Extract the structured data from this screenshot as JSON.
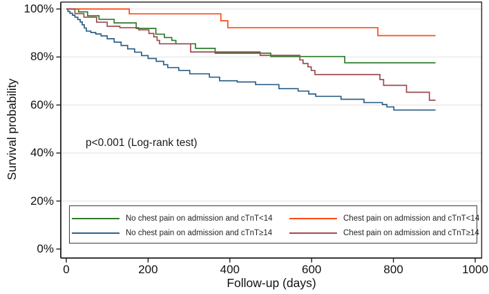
{
  "figure": {
    "y_axis": {
      "title": "Survival probability",
      "ticks": [
        {
          "label": "100%",
          "value": 100
        },
        {
          "label": "80%",
          "value": 80
        },
        {
          "label": "60%",
          "value": 60
        },
        {
          "label": "40%",
          "value": 40
        },
        {
          "label": "20%",
          "value": 20
        },
        {
          "label": "0%",
          "value": 0
        }
      ]
    },
    "x_axis": {
      "title": "Follow-up (days)",
      "ticks": [
        {
          "label": "0",
          "value": 0
        },
        {
          "label": "200",
          "value": 200
        },
        {
          "label": "400",
          "value": 400
        },
        {
          "label": "600",
          "value": 600
        },
        {
          "label": "800",
          "value": 800
        },
        {
          "label": "1000",
          "value": 1000
        }
      ]
    },
    "annotation": "p<0.001 (Log-rank test)"
  },
  "chart_data": {
    "type": "line",
    "subtype": "kaplan-meier-step",
    "title": "",
    "xlabel": "Follow-up (days)",
    "ylabel": "Survival probability",
    "xlim": [
      0,
      1000
    ],
    "ylim": [
      0,
      100
    ],
    "grid": "horizontal",
    "legend_position": "bottom-inside-framed",
    "annotation": "p<0.001 (Log-rank test)",
    "gridline_color": "#e8e8e8",
    "series": [
      {
        "name": "No chest pain on admission and cTnT<14",
        "color": "#2b7a2b",
        "points": [
          [
            0,
            100
          ],
          [
            30,
            98.8
          ],
          [
            52,
            97.2
          ],
          [
            80,
            95.7
          ],
          [
            117,
            94.2
          ],
          [
            171,
            91.9
          ],
          [
            219,
            89.5
          ],
          [
            240,
            88.1
          ],
          [
            258,
            86.9
          ],
          [
            268,
            85.5
          ],
          [
            316,
            83.6
          ],
          [
            364,
            81.6
          ],
          [
            500,
            80.2
          ],
          [
            681,
            77.6
          ],
          [
            903,
            77.6
          ]
        ]
      },
      {
        "name": "No chest pain on admission and cTnT≥14",
        "color": "#2d5f86",
        "points": [
          [
            0,
            100
          ],
          [
            4,
            99
          ],
          [
            9,
            98.2
          ],
          [
            15,
            97.4
          ],
          [
            21,
            96.6
          ],
          [
            28,
            95.6
          ],
          [
            34,
            94.6
          ],
          [
            39,
            93.4
          ],
          [
            44,
            92.1
          ],
          [
            49,
            90.8
          ],
          [
            60,
            90.2
          ],
          [
            72,
            89.6
          ],
          [
            85,
            88.8
          ],
          [
            100,
            87.6
          ],
          [
            117,
            86.2
          ],
          [
            134,
            84.8
          ],
          [
            150,
            83.4
          ],
          [
            167,
            82
          ],
          [
            184,
            80.6
          ],
          [
            200,
            79.4
          ],
          [
            220,
            78.2
          ],
          [
            238,
            76.8
          ],
          [
            248,
            75.6
          ],
          [
            275,
            74.4
          ],
          [
            302,
            73
          ],
          [
            350,
            71.6
          ],
          [
            375,
            70.1
          ],
          [
            418,
            69.6
          ],
          [
            463,
            68.5
          ],
          [
            520,
            66.8
          ],
          [
            567,
            65.8
          ],
          [
            593,
            64.6
          ],
          [
            610,
            63.6
          ],
          [
            672,
            62.4
          ],
          [
            728,
            61
          ],
          [
            773,
            60.2
          ],
          [
            784,
            59.2
          ],
          [
            801,
            57.9
          ],
          [
            903,
            57.9
          ]
        ]
      },
      {
        "name": "Chest pain on admission and cTnT<14",
        "color": "#ff4912",
        "points": [
          [
            0,
            100
          ],
          [
            154,
            98
          ],
          [
            378,
            95.1
          ],
          [
            395,
            92.2
          ],
          [
            762,
            88.9
          ],
          [
            903,
            88.9
          ]
        ]
      },
      {
        "name": "Chest pain on admission and cTnT≥14",
        "color": "#9c4a4e",
        "points": [
          [
            0,
            100
          ],
          [
            21,
            98.1
          ],
          [
            43,
            96.6
          ],
          [
            74,
            94.5
          ],
          [
            100,
            92.8
          ],
          [
            131,
            92.2
          ],
          [
            177,
            91.3
          ],
          [
            202,
            89.8
          ],
          [
            214,
            88.4
          ],
          [
            222,
            86.9
          ],
          [
            228,
            85.5
          ],
          [
            304,
            82.1
          ],
          [
            474,
            80.7
          ],
          [
            571,
            78.8
          ],
          [
            579,
            77.3
          ],
          [
            591,
            75.9
          ],
          [
            599,
            74.4
          ],
          [
            608,
            72.7
          ],
          [
            767,
            70.6
          ],
          [
            776,
            68.2
          ],
          [
            832,
            65.3
          ],
          [
            888,
            62
          ],
          [
            903,
            62
          ]
        ]
      }
    ]
  }
}
